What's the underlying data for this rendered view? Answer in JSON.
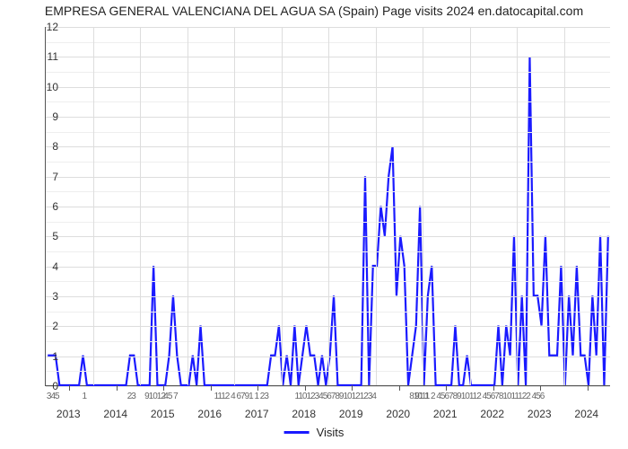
{
  "chart": {
    "type": "line",
    "title": "EMPRESA GENERAL VALENCIANA DEL AGUA SA (Spain) Page visits 2024 en.datocapital.com",
    "title_fontsize": 14,
    "background_color": "#ffffff",
    "grid_color_major": "#dddddd",
    "grid_color_minor": "#eeeeee",
    "axis_color": "#555555",
    "line_color": "#1a1aff",
    "line_width": 2.2,
    "y": {
      "label": "",
      "min": 0,
      "max": 12,
      "ticks": [
        0,
        1,
        2,
        3,
        4,
        5,
        6,
        7,
        8,
        9,
        10,
        11,
        12
      ],
      "tick_fontsize": 12
    },
    "x": {
      "years": [
        "2013",
        "2014",
        "2015",
        "2016",
        "2017",
        "2018",
        "2019",
        "2020",
        "2021",
        "2022",
        "2023",
        "2024"
      ],
      "months_per_year": 12,
      "year_fontsize": 12,
      "minor_labels": [
        {
          "pos_months": 2,
          "text": "345"
        },
        {
          "pos_months": 10,
          "text": "1"
        },
        {
          "pos_months": 22,
          "text": "23"
        },
        {
          "pos_months": 28,
          "text": "91012"
        },
        {
          "pos_months": 32,
          "text": "45 7"
        },
        {
          "pos_months": 50,
          "text": "1112 4 6791 1 23"
        },
        {
          "pos_months": 74,
          "text": "11012345678910121234"
        },
        {
          "pos_months": 96,
          "text": "91 1"
        },
        {
          "pos_months": 110,
          "text": "81011 2 45678910112 456781011122 456"
        }
      ]
    },
    "legend": {
      "label": "Visits",
      "color": "#1a1aff"
    },
    "series": {
      "values": [
        1,
        1,
        1,
        0,
        0,
        0,
        0,
        0,
        0,
        1,
        0,
        0,
        0,
        0,
        0,
        0,
        0,
        0,
        0,
        0,
        0,
        1,
        1,
        0,
        0,
        0,
        0,
        4,
        0,
        0,
        0,
        1,
        3,
        1,
        0,
        0,
        0,
        1,
        0,
        2,
        0,
        0,
        0,
        0,
        0,
        0,
        0,
        0,
        0,
        0,
        0,
        0,
        0,
        0,
        0,
        0,
        0,
        1,
        1,
        2,
        0,
        1,
        0,
        2,
        0,
        1,
        2,
        1,
        1,
        0,
        1,
        0,
        1,
        3,
        0,
        0,
        0,
        0,
        0,
        0,
        0,
        7,
        0,
        4,
        4,
        6,
        5,
        7,
        8,
        3,
        5,
        4,
        0,
        1,
        2,
        6,
        0,
        3,
        4,
        0,
        0,
        0,
        0,
        0,
        2,
        0,
        0,
        1,
        0,
        0,
        0,
        0,
        0,
        0,
        0,
        2,
        0,
        2,
        1,
        5,
        0,
        3,
        0,
        11,
        3,
        3,
        2,
        5,
        1,
        1,
        1,
        4,
        0,
        3,
        1,
        4,
        1,
        1,
        0,
        3,
        1,
        5,
        0,
        5
      ]
    }
  }
}
